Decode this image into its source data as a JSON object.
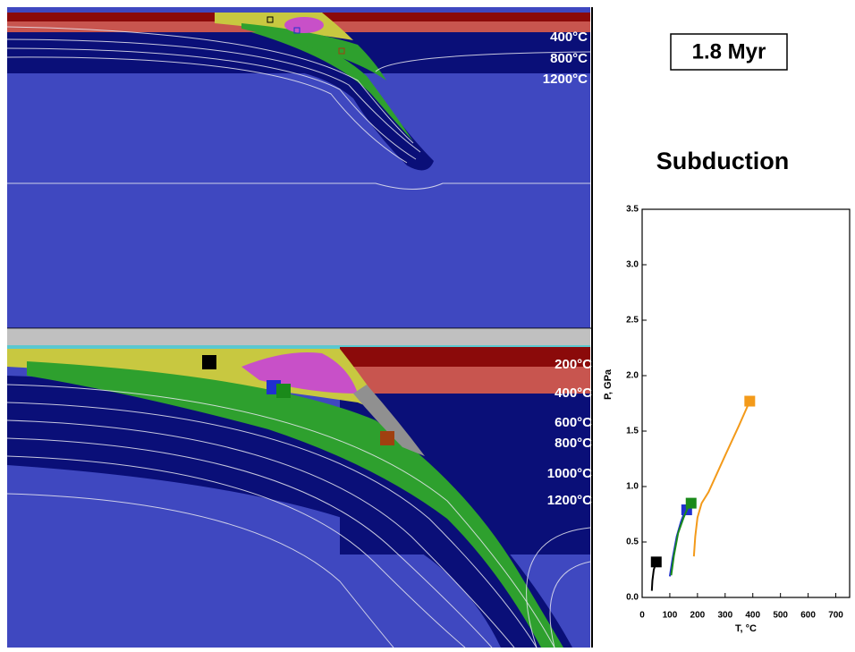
{
  "time_label": "1.8 Myr",
  "title": "Subduction",
  "panels": [
    {
      "isotherm_labels": [
        "400°C",
        "800°C",
        "1200°C"
      ]
    },
    {
      "isotherm_labels": [
        "200°C",
        "400°C",
        "600°C",
        "800°C",
        "1000°C",
        "1200°C"
      ]
    }
  ],
  "chart_data": {
    "type": "line",
    "xlabel": "T, °C",
    "ylabel": "P, GPa",
    "xlim": [
      0,
      750
    ],
    "ylim": [
      0,
      3.5
    ],
    "xticks": [
      0,
      100,
      200,
      300,
      400,
      500,
      600,
      700
    ],
    "yticks": [
      {
        "value": 0,
        "label": "0.0"
      },
      {
        "value": 0.5,
        "label": "0.5"
      },
      {
        "value": 1,
        "label": "1.0"
      },
      {
        "value": 1.5,
        "label": "1.5"
      },
      {
        "value": 2,
        "label": "2.0"
      },
      {
        "value": 2.5,
        "label": "2.5"
      },
      {
        "value": 3,
        "label": "3.0"
      },
      {
        "value": 3.5,
        "label": "3.5"
      }
    ],
    "series": [
      {
        "color": "#000000",
        "x": [
          35,
          37,
          42,
          50
        ],
        "y": [
          0.06,
          0.15,
          0.25,
          0.31
        ],
        "marker": {
          "x": 51,
          "y": 0.32
        }
      },
      {
        "color": "#1f2fd0",
        "x": [
          100,
          110,
          125,
          140,
          155
        ],
        "y": [
          0.19,
          0.35,
          0.55,
          0.68,
          0.78
        ],
        "marker": {
          "x": 161,
          "y": 0.79
        }
      },
      {
        "color": "#1a8a1a",
        "x": [
          105,
          115,
          130,
          150,
          170
        ],
        "y": [
          0.2,
          0.38,
          0.58,
          0.72,
          0.84
        ],
        "marker": {
          "x": 177,
          "y": 0.85
        }
      },
      {
        "color": "#f39a1a",
        "x": [
          187,
          192,
          200,
          215,
          240,
          300,
          350,
          389
        ],
        "y": [
          0.37,
          0.55,
          0.72,
          0.85,
          0.95,
          1.28,
          1.55,
          1.77
        ],
        "marker": {
          "x": 389,
          "y": 1.77
        }
      }
    ]
  }
}
